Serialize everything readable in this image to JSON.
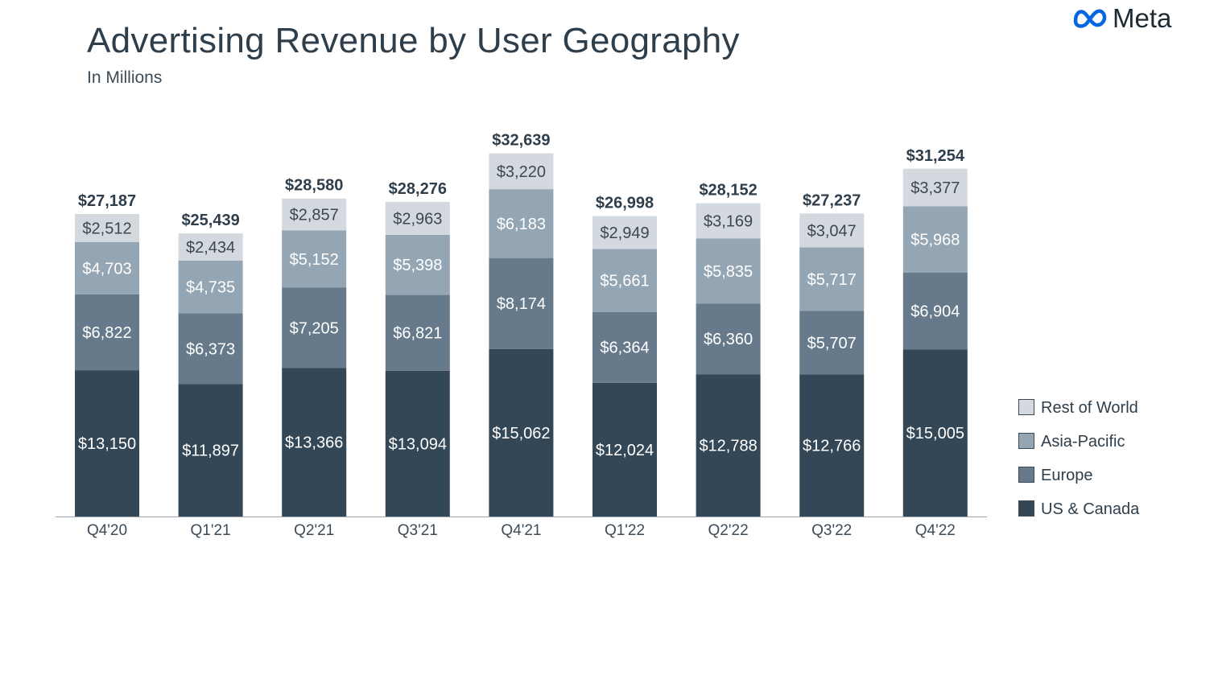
{
  "brand": {
    "logo_text": "Meta",
    "logo_color": "#0668E1"
  },
  "chart_data": {
    "type": "bar",
    "stacked": true,
    "title": "Advertising Revenue by User Geography",
    "subtitle": "In Millions",
    "categories": [
      "Q4'20",
      "Q1'21",
      "Q2'21",
      "Q3'21",
      "Q4'21",
      "Q1'22",
      "Q2'22",
      "Q3'22",
      "Q4'22"
    ],
    "series": [
      {
        "name": "US & Canada",
        "color": "#344756",
        "label_color": "#ffffff",
        "values": [
          13150,
          11897,
          13366,
          13094,
          15062,
          12024,
          12788,
          12766,
          15005
        ]
      },
      {
        "name": "Europe",
        "color": "#677a8b",
        "label_color": "#ffffff",
        "values": [
          6822,
          6373,
          7205,
          6821,
          8174,
          6364,
          6360,
          5707,
          6904
        ]
      },
      {
        "name": "Asia-Pacific",
        "color": "#94a5b3",
        "label_color": "#ffffff",
        "values": [
          4703,
          4735,
          5152,
          5398,
          6183,
          5661,
          5835,
          5717,
          5968
        ]
      },
      {
        "name": "Rest of World",
        "color": "#d3d9df",
        "label_color": "#3d4750",
        "values": [
          2512,
          2434,
          2857,
          2963,
          3220,
          2949,
          3169,
          3047,
          3377
        ]
      }
    ],
    "totals": [
      27187,
      25439,
      28580,
      28276,
      32639,
      26998,
      28152,
      27237,
      31254
    ],
    "value_prefix": "$",
    "legend_position": "right",
    "grid": false,
    "ylim": [
      0,
      33000
    ]
  }
}
